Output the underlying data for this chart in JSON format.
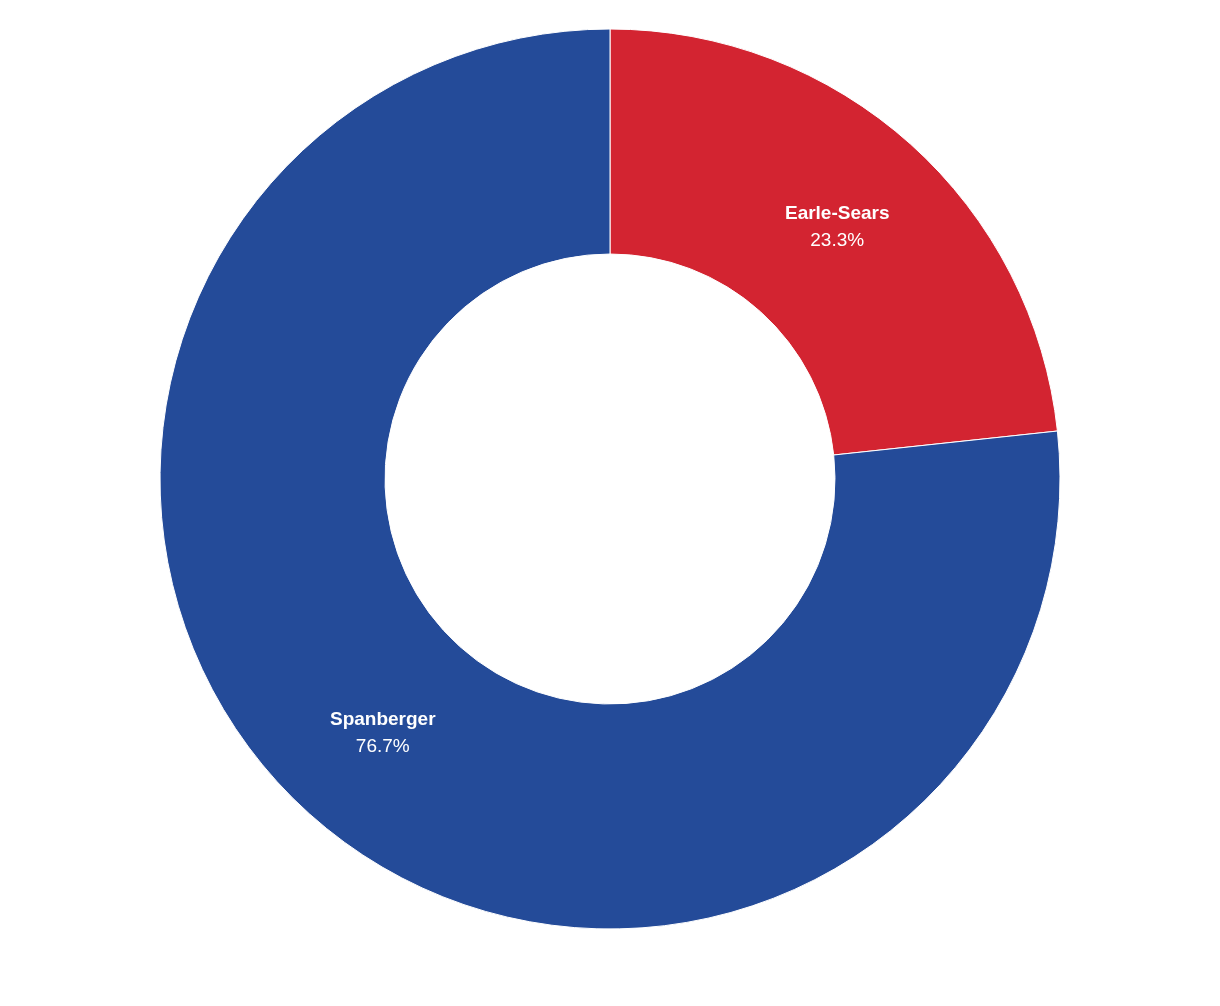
{
  "chart_data": {
    "type": "donut",
    "categories": [
      "Earle-Sears",
      "Spanberger"
    ],
    "values": [
      23.3,
      76.7
    ],
    "colors": [
      "#d32431",
      "#244b99"
    ],
    "value_labels": [
      "23.3%",
      "76.7%"
    ]
  }
}
